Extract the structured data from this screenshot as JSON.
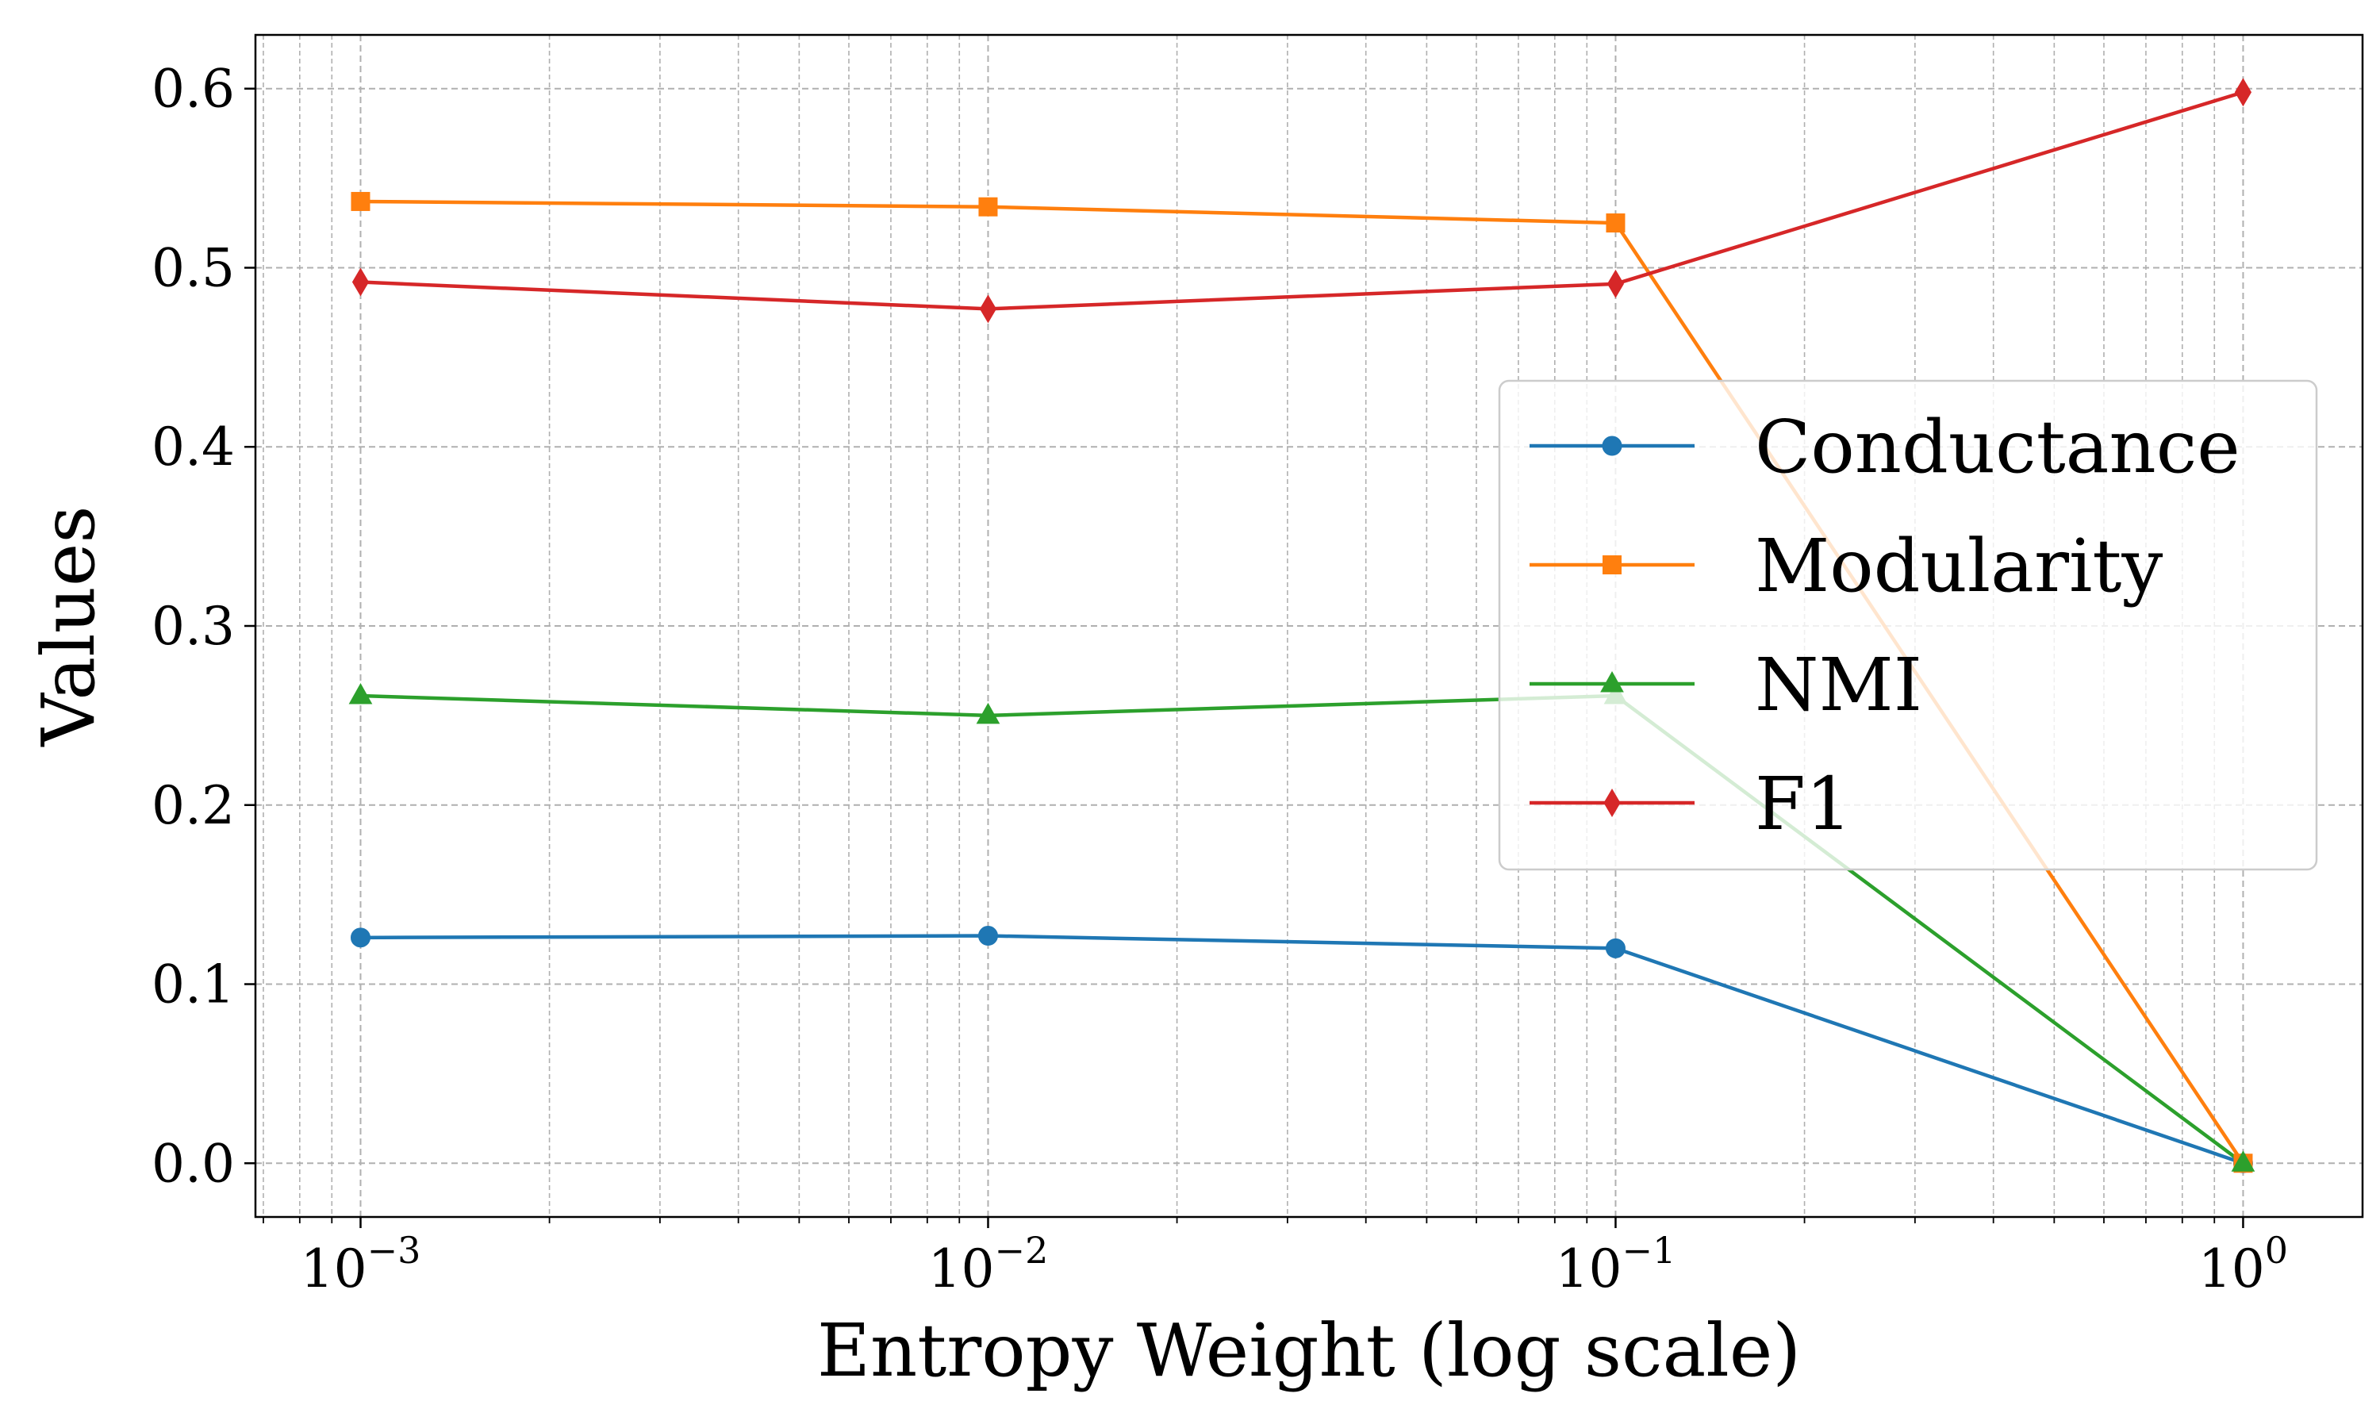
{
  "chart_data": {
    "type": "line",
    "title": "",
    "xlabel": "Entropy Weight (log scale)",
    "ylabel": "Values",
    "xscale": "log",
    "xlim": [
      0.00068,
      1.55
    ],
    "ylim": [
      -0.03,
      0.63
    ],
    "grid": true,
    "legend_position": "center-right",
    "x": [
      0.001,
      0.01,
      0.1,
      1
    ],
    "x_ticks": [
      {
        "value": 0.001,
        "base": "10",
        "exp": "−3"
      },
      {
        "value": 0.01,
        "base": "10",
        "exp": "−2"
      },
      {
        "value": 0.1,
        "base": "10",
        "exp": "−1"
      },
      {
        "value": 1,
        "base": "10",
        "exp": "0"
      }
    ],
    "y_ticks": [
      {
        "value": 0.0,
        "label": "0.0"
      },
      {
        "value": 0.1,
        "label": "0.1"
      },
      {
        "value": 0.2,
        "label": "0.2"
      },
      {
        "value": 0.3,
        "label": "0.3"
      },
      {
        "value": 0.4,
        "label": "0.4"
      },
      {
        "value": 0.5,
        "label": "0.5"
      },
      {
        "value": 0.6,
        "label": "0.6"
      }
    ],
    "series": [
      {
        "name": "Conductance",
        "color": "#1f77b4",
        "marker": "circle",
        "values": [
          0.126,
          0.127,
          0.12,
          0.0
        ]
      },
      {
        "name": "Modularity",
        "color": "#ff7f0e",
        "marker": "square",
        "values": [
          0.537,
          0.534,
          0.525,
          0.0
        ]
      },
      {
        "name": "NMI",
        "color": "#2ca02c",
        "marker": "triangle",
        "values": [
          0.261,
          0.25,
          0.261,
          0.0
        ]
      },
      {
        "name": "F1",
        "color": "#d62728",
        "marker": "diamond",
        "values": [
          0.492,
          0.477,
          0.491,
          0.598
        ]
      }
    ]
  }
}
